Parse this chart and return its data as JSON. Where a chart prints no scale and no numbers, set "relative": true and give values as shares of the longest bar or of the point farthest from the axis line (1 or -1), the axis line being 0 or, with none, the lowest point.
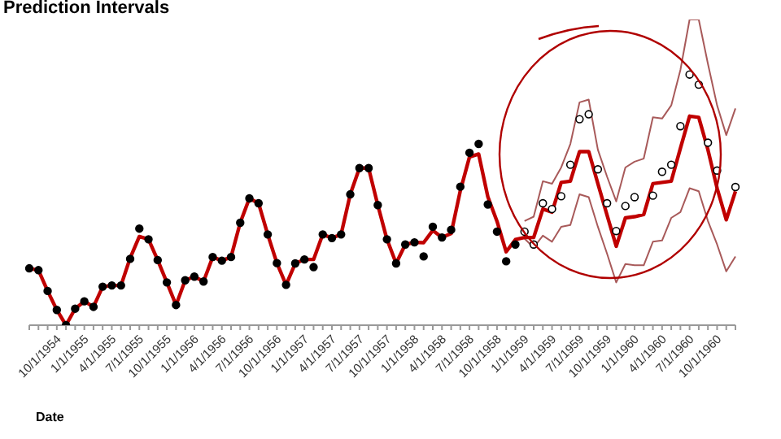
{
  "chart_data": {
    "type": "line",
    "title": "Prediction Intervals",
    "xlabel": "Date",
    "relative": true,
    "legend": false,
    "grid": false,
    "categories": [
      null,
      null,
      null,
      "10/1/1954",
      null,
      null,
      "1/1/1955",
      null,
      null,
      "4/1/1955",
      null,
      null,
      "7/1/1955",
      null,
      null,
      "10/1/1955",
      null,
      null,
      "1/1/1956",
      null,
      null,
      "4/1/1956",
      null,
      null,
      "7/1/1956",
      null,
      null,
      "10/1/1956",
      null,
      null,
      "1/1/1957",
      null,
      null,
      "4/1/1957",
      null,
      null,
      "7/1/1957",
      null,
      null,
      "10/1/1957",
      null,
      null,
      "1/1/1958",
      null,
      null,
      "4/1/1958",
      null,
      null,
      "7/1/1958",
      null,
      null,
      "10/1/1958",
      null,
      null,
      "1/1/1959",
      null,
      null,
      "4/1/1959",
      null,
      null,
      "7/1/1959",
      null,
      null,
      "10/1/1959",
      null,
      null,
      "1/1/1960",
      null,
      null,
      "4/1/1960",
      null,
      null,
      "7/1/1960",
      null,
      null,
      "10/1/1960",
      null,
      null
    ],
    "series": [
      {
        "type": "scatter",
        "marker": "circle",
        "color": "#000000",
        "values": [
          0.186,
          0.18,
          0.112,
          0.05,
          0,
          0.054,
          0.078,
          0.06,
          0.126,
          0.13,
          0.13,
          0.217,
          0.316,
          0.281,
          0.213,
          0.14,
          0.066,
          0.147,
          0.159,
          0.143,
          0.223,
          0.211,
          0.223,
          0.335,
          0.415,
          0.399,
          0.297,
          0.203,
          0.132,
          0.202,
          0.215,
          0.19,
          0.297,
          0.285,
          0.297,
          0.428,
          0.514,
          0.514,
          0.393,
          0.281,
          0.202,
          0.264,
          0.271,
          0.225,
          0.322,
          0.287,
          0.312,
          0.453,
          0.564,
          0.593,
          0.395,
          0.306,
          0.209,
          0.264,
          null,
          null,
          null,
          null,
          null,
          null,
          null,
          null,
          null,
          null,
          null,
          null,
          null,
          null,
          null,
          null,
          null,
          null,
          null,
          null,
          null,
          null,
          null,
          null
        ]
      },
      {
        "type": "line",
        "marker": "none",
        "color": "#a85a5a",
        "values": [
          null,
          null,
          null,
          null,
          null,
          null,
          null,
          null,
          null,
          null,
          null,
          null,
          null,
          null,
          null,
          null,
          null,
          null,
          null,
          null,
          null,
          null,
          null,
          null,
          null,
          null,
          null,
          null,
          null,
          null,
          null,
          null,
          null,
          null,
          null,
          null,
          null,
          null,
          null,
          null,
          null,
          null,
          null,
          null,
          null,
          null,
          null,
          null,
          null,
          null,
          null,
          null,
          null,
          null,
          0.341,
          0.355,
          0.471,
          0.463,
          0.516,
          0.593,
          0.729,
          0.738,
          0.574,
          0.486,
          0.405,
          0.516,
          0.535,
          0.545,
          0.68,
          0.676,
          0.719,
          0.835,
          1,
          1,
          0.855,
          0.719,
          0.622,
          0.709
        ]
      },
      {
        "type": "line",
        "marker": "none",
        "color": "#a85a5a",
        "values": [
          null,
          null,
          null,
          null,
          null,
          null,
          null,
          null,
          null,
          null,
          null,
          null,
          null,
          null,
          null,
          null,
          null,
          null,
          null,
          null,
          null,
          null,
          null,
          null,
          null,
          null,
          null,
          null,
          null,
          null,
          null,
          null,
          null,
          null,
          null,
          null,
          null,
          null,
          null,
          null,
          null,
          null,
          null,
          null,
          null,
          null,
          null,
          null,
          null,
          null,
          null,
          null,
          null,
          null,
          0.283,
          0.254,
          0.293,
          0.273,
          0.322,
          0.328,
          0.428,
          0.419,
          0.322,
          0.234,
          0.14,
          0.2,
          0.196,
          0.196,
          0.273,
          0.277,
          0.351,
          0.37,
          0.448,
          0.438,
          0.341,
          0.264,
          0.176,
          0.225
        ]
      },
      {
        "marker": "none",
        "color": "#c00000",
        "values": [
          0.186,
          0.18,
          0.112,
          0.05,
          0,
          0.054,
          0.078,
          0.06,
          0.126,
          0.13,
          0.13,
          0.22,
          0.29,
          0.281,
          0.213,
          0.14,
          0.066,
          0.147,
          0.159,
          0.143,
          0.223,
          0.211,
          0.223,
          0.335,
          0.415,
          0.399,
          0.297,
          0.203,
          0.132,
          0.202,
          0.215,
          0.215,
          0.297,
          0.285,
          0.297,
          0.428,
          0.514,
          0.514,
          0.393,
          0.281,
          0.202,
          0.264,
          0.271,
          0.27,
          0.31,
          0.287,
          0.3,
          0.44,
          0.55,
          0.56,
          0.42,
          0.34,
          0.24,
          0.28,
          0.287,
          0.287,
          0.38,
          0.37,
          0.467,
          0.471,
          0.568,
          0.568,
          0.463,
          0.36,
          0.258,
          0.351,
          0.355,
          0.362,
          0.463,
          0.467,
          0.471,
          0.579,
          0.684,
          0.68,
          0.574,
          0.448,
          0.345,
          0.438
        ]
      },
      {
        "type": "scatter",
        "marker": "circle",
        "color": "#ffffff",
        "values": [
          null,
          null,
          null,
          null,
          null,
          null,
          null,
          null,
          null,
          null,
          null,
          null,
          null,
          null,
          null,
          null,
          null,
          null,
          null,
          null,
          null,
          null,
          null,
          null,
          null,
          null,
          null,
          null,
          null,
          null,
          null,
          null,
          null,
          null,
          null,
          null,
          null,
          null,
          null,
          null,
          null,
          null,
          null,
          null,
          null,
          null,
          null,
          null,
          null,
          null,
          null,
          null,
          null,
          null,
          0.306,
          0.264,
          0.399,
          0.38,
          0.422,
          0.525,
          0.674,
          0.69,
          0.51,
          0.399,
          0.308,
          0.39,
          0.419,
          null,
          0.424,
          0.502,
          0.525,
          0.651,
          0.82,
          0.787,
          0.597,
          0.506,
          null,
          0.452
        ]
      }
    ]
  }
}
